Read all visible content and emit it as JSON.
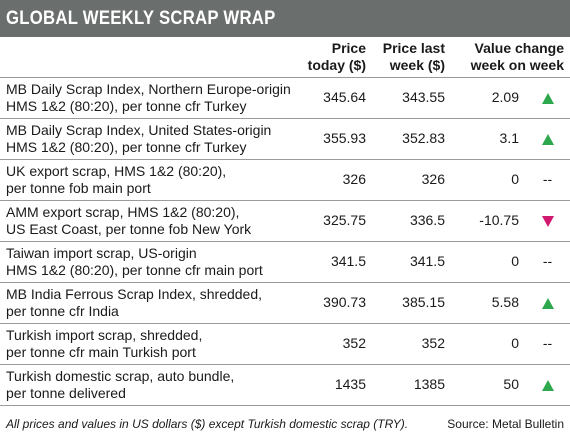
{
  "title": "GLOBAL WEEKLY SCRAP WRAP",
  "columns": {
    "today": [
      "Price",
      "today ($)"
    ],
    "last": [
      "Price last",
      "week ($)"
    ],
    "change": [
      "Value change",
      "week on week"
    ]
  },
  "rows": [
    {
      "desc": [
        "MB Daily Scrap Index, Northern Europe-origin",
        "HMS 1&2 (80:20), per tonne cfr Turkey"
      ],
      "today": "345.64",
      "last": "343.55",
      "change": "2.09",
      "direction": "up"
    },
    {
      "desc": [
        "MB Daily Scrap Index, United States-origin",
        "HMS 1&2 (80:20), per tonne cfr Turkey"
      ],
      "today": "355.93",
      "last": "352.83",
      "change": "3.1",
      "direction": "up"
    },
    {
      "desc": [
        "UK export scrap, HMS 1&2 (80:20),",
        "per tonne fob main port"
      ],
      "today": "326",
      "last": "326",
      "change": "0",
      "direction": "flat"
    },
    {
      "desc": [
        "AMM export scrap, HMS 1&2 (80:20),",
        "US East Coast, per tonne fob New York"
      ],
      "today": "325.75",
      "last": "336.5",
      "change": "-10.75",
      "direction": "down"
    },
    {
      "desc": [
        "Taiwan import scrap, US-origin",
        "HMS 1&2 (80:20), per tonne cfr main port"
      ],
      "today": "341.5",
      "last": "341.5",
      "change": "0",
      "direction": "flat"
    },
    {
      "desc": [
        "MB India Ferrous Scrap Index, shredded,",
        "per tonne cfr India"
      ],
      "today": "390.73",
      "last": "385.15",
      "change": "5.58",
      "direction": "up"
    },
    {
      "desc": [
        "Turkish import scrap, shredded,",
        "per tonne cfr main Turkish port"
      ],
      "today": "352",
      "last": "352",
      "change": "0",
      "direction": "flat"
    },
    {
      "desc": [
        "Turkish domestic scrap, auto bundle,",
        "per tonne delivered"
      ],
      "today": "1435",
      "last": "1385",
      "change": "50",
      "direction": "up"
    }
  ],
  "flat_marker": "--",
  "footer": {
    "note": "All prices and values in US dollars ($) except Turkish domestic scrap (TRY).",
    "source": "Source: Metal Bulletin"
  },
  "colors": {
    "title_bar": "#6a6e6c",
    "up_arrow": "#2ea84c",
    "down_arrow": "#d2186e",
    "rule": "#9a9c9b"
  }
}
